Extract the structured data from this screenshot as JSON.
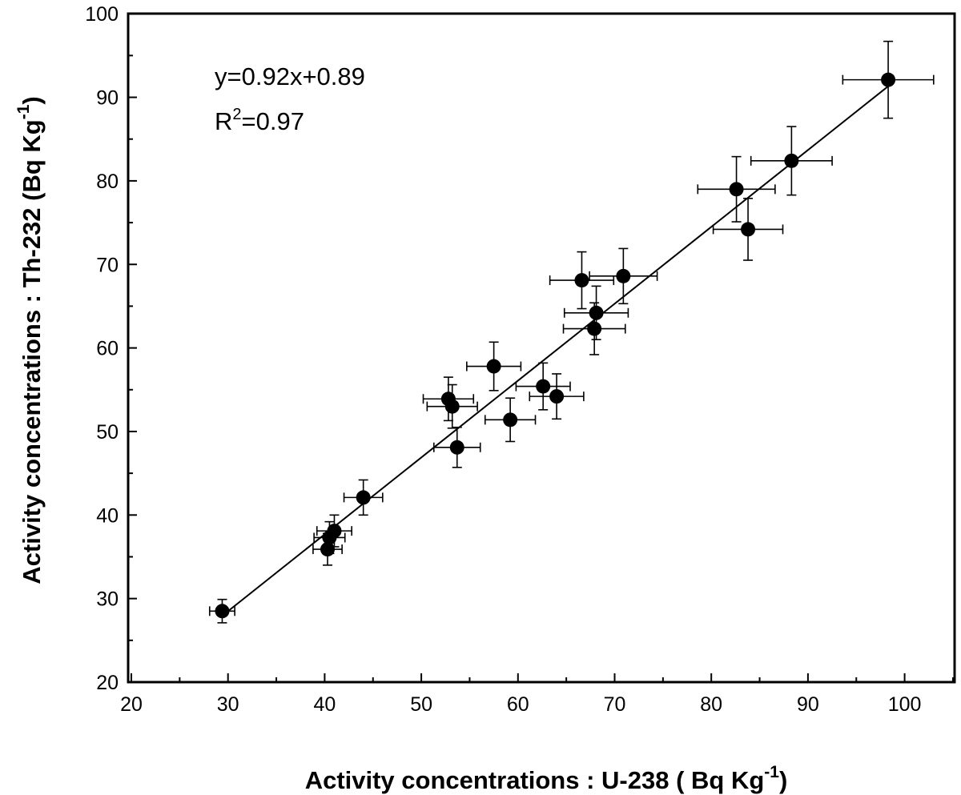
{
  "chart_data": {
    "type": "scatter",
    "xlabel": "Activity concentrations : U-238 ( Bq Kg",
    "xlabel_sup": "-1",
    "xlabel_end": ")",
    "ylabel": "Activity concentrations : Th-232 (Bq Kg",
    "ylabel_sup": "-1",
    "ylabel_end": ")",
    "xlim": [
      20,
      105
    ],
    "ylim": [
      20,
      100
    ],
    "xticks": [
      20,
      30,
      40,
      50,
      60,
      70,
      80,
      90,
      100
    ],
    "yticks": [
      20,
      30,
      40,
      50,
      60,
      70,
      80,
      90,
      100
    ],
    "grid": false,
    "fit_equation": "y=0.92x+0.89",
    "r2_prefix": "R",
    "r2_sup": "2",
    "r2_value": "=0.97",
    "fit": {
      "slope": 0.92,
      "intercept": 0.89,
      "x_range": [
        29.5,
        98.5
      ]
    },
    "points": [
      {
        "x": 29.4,
        "y": 28.5,
        "xerr": 1.3,
        "yerr": 1.4
      },
      {
        "x": 40.3,
        "y": 35.9,
        "xerr": 1.5,
        "yerr": 1.9
      },
      {
        "x": 40.5,
        "y": 37.3,
        "xerr": 1.6,
        "yerr": 1.9
      },
      {
        "x": 41.0,
        "y": 38.1,
        "xerr": 1.8,
        "yerr": 1.9
      },
      {
        "x": 44.0,
        "y": 42.1,
        "xerr": 2.0,
        "yerr": 2.1
      },
      {
        "x": 52.8,
        "y": 53.9,
        "xerr": 2.6,
        "yerr": 2.6
      },
      {
        "x": 53.2,
        "y": 53.0,
        "xerr": 2.6,
        "yerr": 2.6
      },
      {
        "x": 53.7,
        "y": 48.1,
        "xerr": 2.4,
        "yerr": 2.4
      },
      {
        "x": 57.5,
        "y": 57.8,
        "xerr": 2.8,
        "yerr": 2.9
      },
      {
        "x": 59.2,
        "y": 51.4,
        "xerr": 2.6,
        "yerr": 2.6
      },
      {
        "x": 62.6,
        "y": 55.4,
        "xerr": 2.8,
        "yerr": 2.8
      },
      {
        "x": 64.0,
        "y": 54.2,
        "xerr": 2.8,
        "yerr": 2.7
      },
      {
        "x": 66.6,
        "y": 68.1,
        "xerr": 3.3,
        "yerr": 3.4
      },
      {
        "x": 67.9,
        "y": 62.3,
        "xerr": 3.2,
        "yerr": 3.1
      },
      {
        "x": 68.1,
        "y": 64.2,
        "xerr": 3.3,
        "yerr": 3.2
      },
      {
        "x": 70.9,
        "y": 68.6,
        "xerr": 3.5,
        "yerr": 3.3
      },
      {
        "x": 82.6,
        "y": 79.0,
        "xerr": 4.0,
        "yerr": 3.9
      },
      {
        "x": 83.8,
        "y": 74.2,
        "xerr": 3.6,
        "yerr": 3.7
      },
      {
        "x": 88.3,
        "y": 82.4,
        "xerr": 4.2,
        "yerr": 4.1
      },
      {
        "x": 98.3,
        "y": 92.1,
        "xerr": 4.7,
        "yerr": 4.6
      }
    ]
  }
}
